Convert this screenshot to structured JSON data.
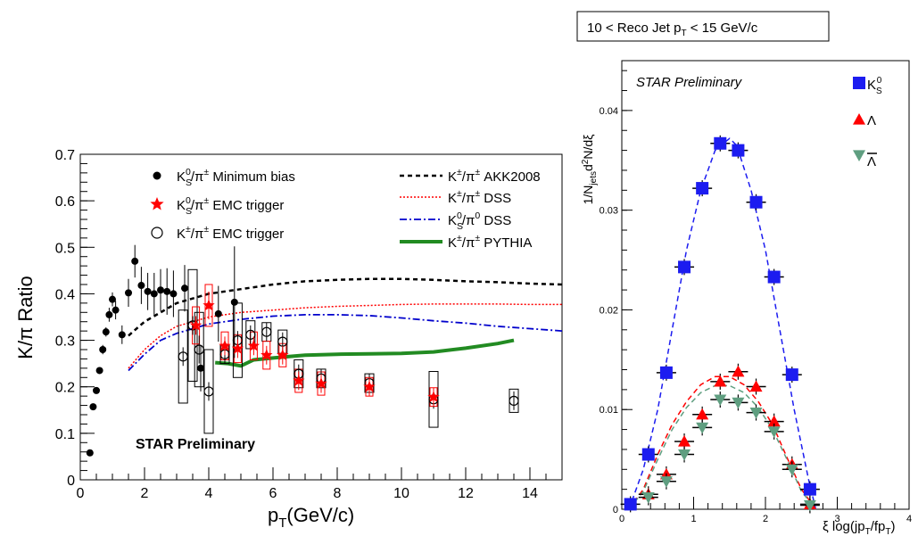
{
  "chart_data": [
    {
      "type": "scatter",
      "xlabel": "p",
      "xlabel_sub": "T",
      "xlabel_suffix": "(GeV/c)",
      "ylabel": "K/π Ratio",
      "xlim": [
        0,
        15
      ],
      "ylim": [
        0,
        0.7
      ],
      "xticks": [
        "0",
        "2",
        "4",
        "6",
        "8",
        "10",
        "12",
        "14"
      ],
      "yticks": [
        "0",
        "0.1",
        "0.2",
        "0.3",
        "0.4",
        "0.5",
        "0.6",
        "0.7"
      ],
      "grid": false,
      "annotation": "STAR Preliminary",
      "legend_left": [
        "K⁰s/π± Minimum bias",
        "K⁰s/π± EMC trigger",
        "K±/π± EMC trigger"
      ],
      "legend_right": [
        "K±/π± AKK2008",
        "K±/π± DSS",
        "K⁰s/π⁰ DSS",
        "K±/π± PYTHIA"
      ],
      "legend_text": {
        "mb": [
          "K",
          "S",
          "0",
          "/π",
          "±",
          " Minimum bias"
        ],
        "emc_k0s": [
          "K",
          "S",
          "0",
          "/π",
          "±",
          " EMC trigger"
        ],
        "emc_kpm": [
          "K",
          "",
          "±",
          "/π",
          "±",
          " EMC trigger"
        ],
        "akk": [
          "K",
          "",
          "±",
          "/π",
          "±",
          " AKK2008"
        ],
        "dss": [
          "K",
          "",
          "±",
          "/π",
          "±",
          " DSS"
        ],
        "dss0": [
          "K",
          "S",
          "0",
          "/π",
          "0",
          " DSS"
        ],
        "pythia": [
          "K",
          "",
          "±",
          "/π",
          "±",
          " PYTHIA"
        ]
      },
      "series": [
        {
          "name": "K⁰s/π± Minimum bias",
          "color": "#000000",
          "marker": "filled-circle",
          "points": [
            {
              "x": 0.3,
              "y": 0.058,
              "e": 0.0
            },
            {
              "x": 0.4,
              "y": 0.157,
              "e": 0.0
            },
            {
              "x": 0.5,
              "y": 0.192,
              "e": 0.0
            },
            {
              "x": 0.6,
              "y": 0.235,
              "e": 0.0
            },
            {
              "x": 0.7,
              "y": 0.28,
              "e": 0.01
            },
            {
              "x": 0.8,
              "y": 0.318,
              "e": 0.01
            },
            {
              "x": 0.9,
              "y": 0.355,
              "e": 0.015
            },
            {
              "x": 1.0,
              "y": 0.388,
              "e": 0.015
            },
            {
              "x": 1.1,
              "y": 0.365,
              "e": 0.02
            },
            {
              "x": 1.3,
              "y": 0.312,
              "e": 0.02
            },
            {
              "x": 1.5,
              "y": 0.402,
              "e": 0.03
            },
            {
              "x": 1.7,
              "y": 0.47,
              "e": 0.035
            },
            {
              "x": 1.9,
              "y": 0.418,
              "e": 0.04
            },
            {
              "x": 2.1,
              "y": 0.405,
              "e": 0.04
            },
            {
              "x": 2.3,
              "y": 0.4,
              "e": 0.045
            },
            {
              "x": 2.5,
              "y": 0.408,
              "e": 0.045
            },
            {
              "x": 2.7,
              "y": 0.405,
              "e": 0.05
            },
            {
              "x": 2.9,
              "y": 0.4,
              "e": 0.05
            },
            {
              "x": 3.25,
              "y": 0.412,
              "e": 0.05
            },
            {
              "x": 3.75,
              "y": 0.24,
              "e": 0.05
            },
            {
              "x": 4.3,
              "y": 0.357,
              "e": 0.06
            },
            {
              "x": 4.8,
              "y": 0.382,
              "e": 0.12
            }
          ]
        },
        {
          "name": "K⁰s/π± EMC trigger",
          "color": "#ff0000",
          "marker": "star",
          "points": [
            {
              "x": 3.6,
              "y": 0.332,
              "e": 0.02,
              "sys": 0.04
            },
            {
              "x": 4.0,
              "y": 0.375,
              "e": 0.03,
              "sys": 0.045
            },
            {
              "x": 4.5,
              "y": 0.288,
              "e": 0.02,
              "sys": 0.03
            },
            {
              "x": 4.9,
              "y": 0.282,
              "e": 0.02,
              "sys": 0.03
            },
            {
              "x": 5.4,
              "y": 0.288,
              "e": 0.02,
              "sys": 0.03
            },
            {
              "x": 5.8,
              "y": 0.268,
              "e": 0.02,
              "sys": 0.03
            },
            {
              "x": 6.3,
              "y": 0.268,
              "e": 0.02,
              "sys": 0.025
            },
            {
              "x": 6.8,
              "y": 0.213,
              "e": 0.02,
              "sys": 0.025
            },
            {
              "x": 7.5,
              "y": 0.207,
              "e": 0.02,
              "sys": 0.025
            },
            {
              "x": 9.0,
              "y": 0.2,
              "e": 0.02,
              "sys": 0.02
            },
            {
              "x": 11.0,
              "y": 0.178,
              "e": 0.02,
              "sys": 0.02
            }
          ]
        },
        {
          "name": "K±/π± EMC trigger",
          "color": "#000000",
          "marker": "open-circle",
          "points": [
            {
              "x": 3.2,
              "y": 0.265,
              "e": 0.02,
              "sys": 0.1
            },
            {
              "x": 3.5,
              "y": 0.332,
              "e": 0.02,
              "sys": 0.12
            },
            {
              "x": 3.7,
              "y": 0.28,
              "e": 0.03,
              "sys": 0.08
            },
            {
              "x": 4.0,
              "y": 0.19,
              "e": 0.02,
              "sys": 0.09
            },
            {
              "x": 4.5,
              "y": 0.27,
              "e": 0.02,
              "sys": 0.02
            },
            {
              "x": 4.9,
              "y": 0.3,
              "e": 0.02,
              "sys": 0.08
            },
            {
              "x": 5.3,
              "y": 0.312,
              "e": 0.02,
              "sys": 0.03
            },
            {
              "x": 5.8,
              "y": 0.318,
              "e": 0.02,
              "sys": 0.02
            },
            {
              "x": 6.3,
              "y": 0.297,
              "e": 0.02,
              "sys": 0.025
            },
            {
              "x": 6.8,
              "y": 0.228,
              "e": 0.02,
              "sys": 0.03
            },
            {
              "x": 7.5,
              "y": 0.218,
              "e": 0.02,
              "sys": 0.02
            },
            {
              "x": 9.0,
              "y": 0.208,
              "e": 0.02,
              "sys": 0.02
            },
            {
              "x": 11.0,
              "y": 0.173,
              "e": 0.02,
              "sys": 0.06
            },
            {
              "x": 13.5,
              "y": 0.17,
              "e": 0.02,
              "sys": 0.025
            }
          ]
        }
      ],
      "curves": [
        {
          "name": "K±/π± AKK2008",
          "color": "#000000",
          "style": "dashed",
          "width": 2.5,
          "points": [
            [
              1.5,
              0.31
            ],
            [
              2,
              0.34
            ],
            [
              3,
              0.38
            ],
            [
              4,
              0.4
            ],
            [
              5,
              0.41
            ],
            [
              6,
              0.42
            ],
            [
              7,
              0.427
            ],
            [
              8,
              0.43
            ],
            [
              9,
              0.432
            ],
            [
              10,
              0.432
            ],
            [
              11,
              0.43
            ],
            [
              12,
              0.427
            ],
            [
              13,
              0.425
            ],
            [
              14,
              0.422
            ],
            [
              15,
              0.42
            ]
          ]
        },
        {
          "name": "K±/π± DSS",
          "color": "#ff0000",
          "style": "dotted",
          "width": 1.5,
          "points": [
            [
              1.5,
              0.24
            ],
            [
              2,
              0.28
            ],
            [
              2.5,
              0.31
            ],
            [
              3,
              0.33
            ],
            [
              4,
              0.35
            ],
            [
              5,
              0.36
            ],
            [
              6,
              0.365
            ],
            [
              7,
              0.37
            ],
            [
              8,
              0.373
            ],
            [
              9,
              0.375
            ],
            [
              10,
              0.377
            ],
            [
              11,
              0.378
            ],
            [
              12,
              0.378
            ],
            [
              13,
              0.378
            ],
            [
              14,
              0.377
            ],
            [
              15,
              0.377
            ]
          ]
        },
        {
          "name": "K⁰s/π⁰ DSS",
          "color": "#0000cc",
          "style": "dashdot",
          "width": 1.8,
          "points": [
            [
              1.5,
              0.235
            ],
            [
              2,
              0.27
            ],
            [
              2.5,
              0.3
            ],
            [
              3,
              0.315
            ],
            [
              4,
              0.335
            ],
            [
              5,
              0.345
            ],
            [
              6,
              0.352
            ],
            [
              7,
              0.355
            ],
            [
              8,
              0.355
            ],
            [
              9,
              0.353
            ],
            [
              10,
              0.348
            ],
            [
              11,
              0.342
            ],
            [
              12,
              0.337
            ],
            [
              13,
              0.33
            ],
            [
              14,
              0.325
            ],
            [
              15,
              0.32
            ]
          ]
        },
        {
          "name": "K±/π± PYTHIA",
          "color": "#228b22",
          "style": "solid",
          "width": 4,
          "points": [
            [
              4.2,
              0.252
            ],
            [
              4.6,
              0.25
            ],
            [
              5.0,
              0.245
            ],
            [
              5.4,
              0.258
            ],
            [
              6,
              0.262
            ],
            [
              6.5,
              0.265
            ],
            [
              7,
              0.268
            ],
            [
              8,
              0.27
            ],
            [
              9,
              0.271
            ],
            [
              10,
              0.272
            ],
            [
              11,
              0.275
            ],
            [
              12,
              0.283
            ],
            [
              13,
              0.293
            ],
            [
              13.5,
              0.3
            ]
          ]
        }
      ]
    },
    {
      "type": "scatter",
      "title": "10 < Reco Jet p",
      "title_sub": "T",
      "title_suffix": " < 15 GeV/c",
      "annotation": "STAR Preliminary",
      "xlabel": "ξ log(jp",
      "xlabel_sub1": "T",
      "xlabel_mid": "/fp",
      "xlabel_sub2": "T",
      "xlabel_end": ")",
      "ylabel_parts": [
        "1/N",
        "jets",
        "d",
        "2",
        "N/dξ"
      ],
      "xlim": [
        0,
        4
      ],
      "ylim": [
        0,
        0.045
      ],
      "xticks": [
        "0",
        "1",
        "2",
        "3",
        "4"
      ],
      "yticks": [
        "0",
        "0.01",
        "0.02",
        "0.03",
        "0.04"
      ],
      "grid": false,
      "legend_labels": [
        "K",
        "Λ",
        "Λ"
      ],
      "legend_sub": "S",
      "legend_sup": "0",
      "series": [
        {
          "name": "K⁰s",
          "color": "#1c1cf0",
          "marker": "square",
          "points": [
            [
              0.12,
              0.0005
            ],
            [
              0.37,
              0.0055
            ],
            [
              0.62,
              0.0137
            ],
            [
              0.87,
              0.0243
            ],
            [
              1.12,
              0.0322
            ],
            [
              1.37,
              0.0367
            ],
            [
              1.62,
              0.036
            ],
            [
              1.87,
              0.0308
            ],
            [
              2.12,
              0.0233
            ],
            [
              2.37,
              0.0135
            ],
            [
              2.62,
              0.002
            ]
          ]
        },
        {
          "name": "Λ",
          "color": "#ff0000",
          "marker": "triangle-up",
          "points": [
            [
              0.37,
              0.0015
            ],
            [
              0.62,
              0.0035
            ],
            [
              0.87,
              0.0068
            ],
            [
              1.12,
              0.0095
            ],
            [
              1.37,
              0.0128
            ],
            [
              1.62,
              0.0138
            ],
            [
              1.87,
              0.0123
            ],
            [
              2.12,
              0.0088
            ],
            [
              2.37,
              0.0045
            ],
            [
              2.62,
              0.0005
            ]
          ]
        },
        {
          "name": "anti-Λ",
          "color": "#5f9e80",
          "marker": "triangle-down",
          "points": [
            [
              0.37,
              0.0012
            ],
            [
              0.62,
              0.0028
            ],
            [
              0.87,
              0.0055
            ],
            [
              1.12,
              0.0082
            ],
            [
              1.37,
              0.011
            ],
            [
              1.62,
              0.0107
            ],
            [
              1.87,
              0.0097
            ],
            [
              2.12,
              0.0078
            ],
            [
              2.37,
              0.004
            ],
            [
              2.62,
              0.0004
            ]
          ]
        }
      ],
      "curves": [
        {
          "name": "K⁰s fit",
          "color": "#1c1cf0",
          "points": [
            [
              0.1,
              0.0
            ],
            [
              0.3,
              0.004
            ],
            [
              0.5,
              0.01
            ],
            [
              0.7,
              0.018
            ],
            [
              0.9,
              0.026
            ],
            [
              1.1,
              0.032
            ],
            [
              1.3,
              0.036
            ],
            [
              1.5,
              0.0372
            ],
            [
              1.6,
              0.0365
            ],
            [
              1.8,
              0.032
            ],
            [
              2.0,
              0.026
            ],
            [
              2.2,
              0.018
            ],
            [
              2.4,
              0.01
            ],
            [
              2.6,
              0.003
            ],
            [
              2.7,
              0.0
            ]
          ]
        },
        {
          "name": "Λ fit",
          "color": "#ff0000",
          "points": [
            [
              0.1,
              0.0
            ],
            [
              0.3,
              0.002
            ],
            [
              0.5,
              0.0055
            ],
            [
              0.7,
              0.0085
            ],
            [
              0.9,
              0.0108
            ],
            [
              1.1,
              0.0125
            ],
            [
              1.3,
              0.0133
            ],
            [
              1.5,
              0.0133
            ],
            [
              1.7,
              0.0125
            ],
            [
              1.9,
              0.0108
            ],
            [
              2.1,
              0.0085
            ],
            [
              2.3,
              0.0052
            ],
            [
              2.5,
              0.002
            ],
            [
              2.7,
              0.0
            ]
          ]
        },
        {
          "name": "anti-Λ fit",
          "color": "#5f9e80",
          "points": [
            [
              0.1,
              0.0
            ],
            [
              0.3,
              0.0018
            ],
            [
              0.5,
              0.005
            ],
            [
              0.7,
              0.008
            ],
            [
              0.9,
              0.0102
            ],
            [
              1.1,
              0.0117
            ],
            [
              1.3,
              0.0124
            ],
            [
              1.5,
              0.0124
            ],
            [
              1.7,
              0.0117
            ],
            [
              1.9,
              0.0102
            ],
            [
              2.1,
              0.008
            ],
            [
              2.3,
              0.005
            ],
            [
              2.5,
              0.0018
            ],
            [
              2.7,
              0.0
            ]
          ]
        }
      ]
    }
  ]
}
